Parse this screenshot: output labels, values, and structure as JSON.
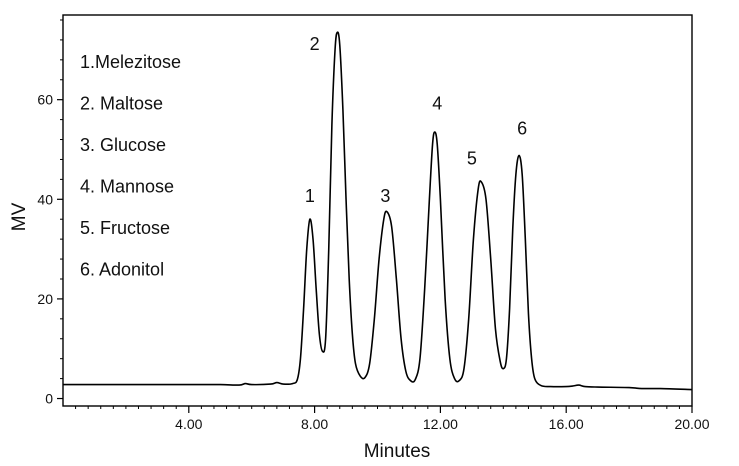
{
  "chart_data": {
    "type": "line",
    "title": "",
    "xlabel": "Minutes",
    "ylabel": "MV",
    "xlim": [
      0,
      20
    ],
    "ylim": [
      -1.5,
      77
    ],
    "x_ticks": [
      {
        "value": 4,
        "label": "4.00"
      },
      {
        "value": 8,
        "label": "8.00"
      },
      {
        "value": 12,
        "label": "12.00"
      },
      {
        "value": 16,
        "label": "16.00"
      },
      {
        "value": 20,
        "label": "20.00"
      }
    ],
    "y_ticks": [
      {
        "value": 0,
        "label": "0"
      },
      {
        "value": 20,
        "label": "20"
      },
      {
        "value": 40,
        "label": "40"
      },
      {
        "value": 60,
        "label": "60"
      }
    ],
    "legend": [
      "1.Melezitose",
      "2. Maltose",
      "3. Glucose",
      "4. Mannose",
      "5. Fructose",
      "6. Adonitol"
    ],
    "peak_labels": [
      {
        "text": "1",
        "x": 7.85,
        "y": 39.5
      },
      {
        "text": "2",
        "x": 8.0,
        "y": 70.0
      },
      {
        "text": "3",
        "x": 10.25,
        "y": 39.5
      },
      {
        "text": "4",
        "x": 11.9,
        "y": 58.0
      },
      {
        "text": "5",
        "x": 13.0,
        "y": 47.0
      },
      {
        "text": "6",
        "x": 14.6,
        "y": 53.0
      }
    ],
    "series": [
      {
        "color": "#000000",
        "points": [
          [
            0.0,
            2.8
          ],
          [
            1.0,
            2.8
          ],
          [
            2.0,
            2.8
          ],
          [
            3.0,
            2.8
          ],
          [
            4.0,
            2.8
          ],
          [
            5.0,
            2.8
          ],
          [
            5.6,
            2.7
          ],
          [
            5.8,
            3.0
          ],
          [
            6.0,
            2.8
          ],
          [
            6.6,
            2.9
          ],
          [
            6.8,
            3.2
          ],
          [
            7.0,
            2.9
          ],
          [
            7.3,
            3.0
          ],
          [
            7.45,
            3.8
          ],
          [
            7.55,
            8.0
          ],
          [
            7.65,
            18.0
          ],
          [
            7.75,
            30.0
          ],
          [
            7.85,
            36.0
          ],
          [
            7.95,
            32.0
          ],
          [
            8.05,
            22.0
          ],
          [
            8.15,
            13.0
          ],
          [
            8.25,
            9.5
          ],
          [
            8.35,
            12.0
          ],
          [
            8.45,
            30.0
          ],
          [
            8.55,
            55.0
          ],
          [
            8.65,
            70.0
          ],
          [
            8.72,
            73.5
          ],
          [
            8.8,
            71.0
          ],
          [
            8.9,
            58.0
          ],
          [
            9.0,
            40.0
          ],
          [
            9.1,
            24.0
          ],
          [
            9.2,
            13.0
          ],
          [
            9.3,
            7.0
          ],
          [
            9.45,
            4.5
          ],
          [
            9.6,
            4.2
          ],
          [
            9.75,
            7.0
          ],
          [
            9.9,
            16.0
          ],
          [
            10.05,
            28.0
          ],
          [
            10.2,
            36.0
          ],
          [
            10.3,
            37.5
          ],
          [
            10.45,
            34.5
          ],
          [
            10.6,
            24.0
          ],
          [
            10.75,
            12.0
          ],
          [
            10.9,
            5.5
          ],
          [
            11.05,
            3.6
          ],
          [
            11.2,
            3.8
          ],
          [
            11.35,
            8.0
          ],
          [
            11.5,
            22.0
          ],
          [
            11.65,
            40.0
          ],
          [
            11.75,
            51.0
          ],
          [
            11.82,
            53.5
          ],
          [
            11.9,
            51.0
          ],
          [
            12.0,
            40.0
          ],
          [
            12.15,
            20.0
          ],
          [
            12.3,
            8.0
          ],
          [
            12.45,
            4.0
          ],
          [
            12.6,
            3.6
          ],
          [
            12.75,
            6.0
          ],
          [
            12.9,
            16.0
          ],
          [
            13.05,
            32.0
          ],
          [
            13.2,
            42.0
          ],
          [
            13.3,
            43.5
          ],
          [
            13.45,
            40.0
          ],
          [
            13.6,
            28.0
          ],
          [
            13.75,
            14.0
          ],
          [
            13.9,
            7.5
          ],
          [
            14.0,
            6.0
          ],
          [
            14.1,
            8.0
          ],
          [
            14.2,
            18.0
          ],
          [
            14.3,
            34.0
          ],
          [
            14.4,
            45.0
          ],
          [
            14.5,
            48.8
          ],
          [
            14.6,
            45.0
          ],
          [
            14.7,
            32.0
          ],
          [
            14.8,
            17.0
          ],
          [
            14.9,
            8.0
          ],
          [
            15.0,
            4.0
          ],
          [
            15.2,
            2.6
          ],
          [
            15.5,
            2.4
          ],
          [
            16.0,
            2.4
          ],
          [
            16.2,
            2.5
          ],
          [
            16.4,
            2.7
          ],
          [
            16.6,
            2.4
          ],
          [
            17.0,
            2.3
          ],
          [
            18.0,
            2.2
          ],
          [
            18.4,
            2.0
          ],
          [
            19.0,
            2.0
          ],
          [
            20.0,
            1.8
          ]
        ]
      }
    ]
  }
}
